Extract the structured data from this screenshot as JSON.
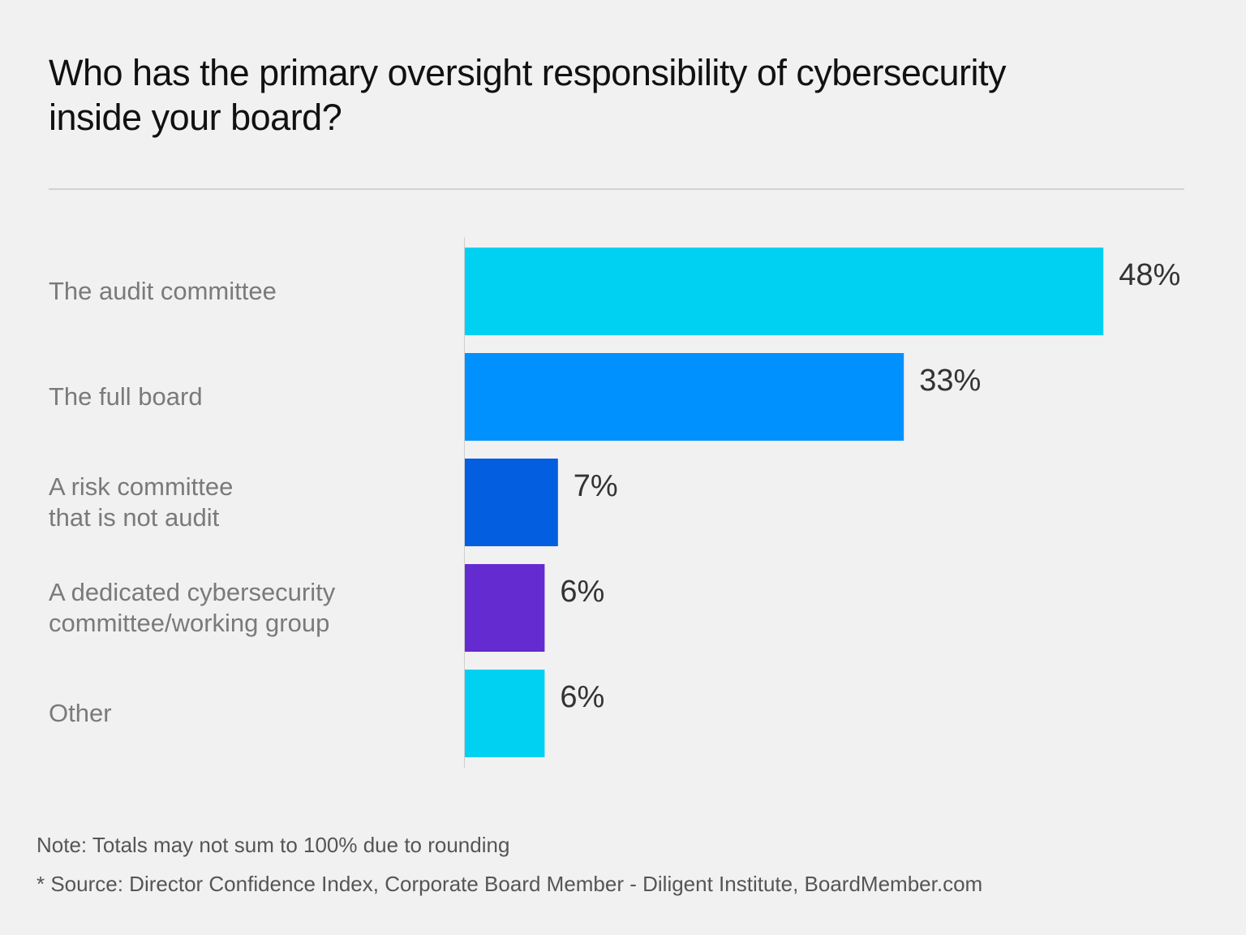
{
  "title_lines": [
    "Who has the primary oversight responsibility of cybersecurity",
    "inside your board?"
  ],
  "footer": {
    "note": "Note: Totals may not sum to 100% due to rounding",
    "source": "* Source: Director Confidence Index, Corporate Board Member - Diligent Institute, BoardMember.com"
  },
  "chart_data": {
    "type": "bar",
    "orientation": "horizontal",
    "title": "Who has the primary oversight responsibility of cybersecurity inside your board?",
    "xlabel": "",
    "ylabel": "",
    "xlim": [
      0,
      48
    ],
    "grid": false,
    "categories": [
      [
        "The audit committee"
      ],
      [
        "The full board"
      ],
      [
        "A risk committee",
        "that is not audit"
      ],
      [
        "A dedicated cybersecurity",
        "committee/working group"
      ],
      [
        "Other"
      ]
    ],
    "values": [
      48,
      33,
      7,
      6,
      6
    ],
    "value_labels": [
      "48%",
      "33%",
      "7%",
      "6%",
      "6%"
    ],
    "colors": [
      "#00d1f2",
      "#0091ff",
      "#035ee0",
      "#642bd1",
      "#00d1f2"
    ]
  }
}
